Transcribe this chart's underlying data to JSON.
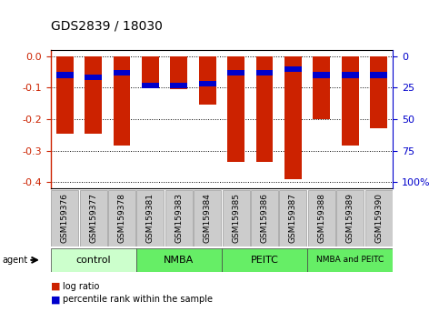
{
  "title": "GDS2839 / 18030",
  "samples": [
    "GSM159376",
    "GSM159377",
    "GSM159378",
    "GSM159381",
    "GSM159383",
    "GSM159384",
    "GSM159385",
    "GSM159386",
    "GSM159387",
    "GSM159388",
    "GSM159389",
    "GSM159390"
  ],
  "log_ratio": [
    -0.245,
    -0.245,
    -0.285,
    -0.1,
    -0.105,
    -0.155,
    -0.335,
    -0.335,
    -0.39,
    -0.2,
    -0.285,
    -0.23
  ],
  "percentile_rank_pct": [
    15,
    17,
    13,
    23,
    23,
    22,
    13,
    13,
    10,
    15,
    15,
    15
  ],
  "groups": [
    {
      "label": "control",
      "indices": [
        0,
        1,
        2
      ],
      "color": "#ccffcc"
    },
    {
      "label": "NMBA",
      "indices": [
        3,
        4,
        5
      ],
      "color": "#66ee66"
    },
    {
      "label": "PEITC",
      "indices": [
        6,
        7,
        8
      ],
      "color": "#66ee66"
    },
    {
      "label": "NMBA and PEITC",
      "indices": [
        9,
        10,
        11
      ],
      "color": "#66ee66"
    }
  ],
  "bar_color_red": "#cc2200",
  "bar_color_blue": "#0000cc",
  "ylim_left": [
    -0.42,
    0.02
  ],
  "yticks_left": [
    0.0,
    -0.1,
    -0.2,
    -0.3,
    -0.4
  ],
  "yticks_right": [
    100,
    75,
    50,
    25,
    0
  ],
  "legend_log_ratio": "log ratio",
  "legend_percentile": "percentile rank within the sample",
  "agent_label": "agent",
  "bar_width": 0.6,
  "tick_label_fontsize": 6.5,
  "title_fontsize": 10,
  "group_label_fontsize": 8,
  "legend_fontsize": 7,
  "right_tick_color": "#0000cc",
  "red_tick_color": "#cc2200"
}
